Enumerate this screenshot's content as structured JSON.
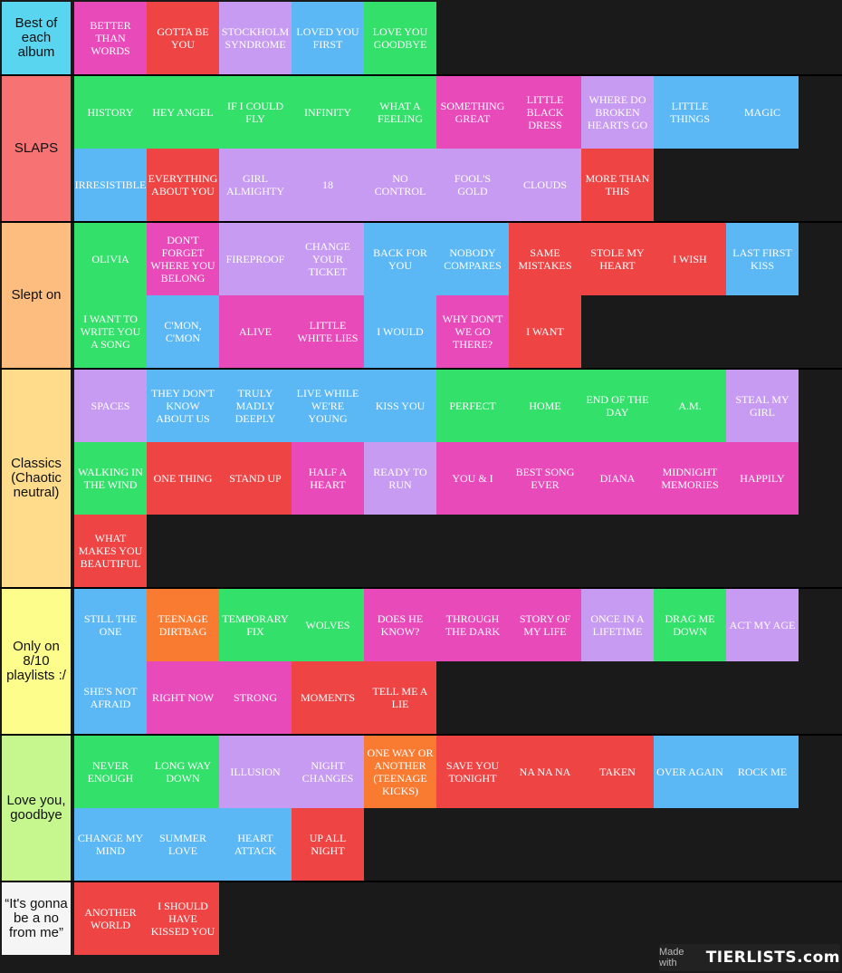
{
  "tiers": [
    {
      "label": "Best of each album",
      "color": "#5ad5f0",
      "items": [
        {
          "text": "BETTER THAN WORDS",
          "color": "pink"
        },
        {
          "text": "GOTTA BE YOU",
          "color": "red"
        },
        {
          "text": "STOCKHOLM SYNDROME",
          "color": "lav"
        },
        {
          "text": "LOVED YOU FIRST",
          "color": "blue"
        },
        {
          "text": "LOVE YOU GOODBYE",
          "color": "green"
        }
      ]
    },
    {
      "label": "SLAPS",
      "color": "#f77272",
      "items": [
        {
          "text": "HISTORY",
          "color": "green"
        },
        {
          "text": "HEY ANGEL",
          "color": "green"
        },
        {
          "text": "IF I COULD FLY",
          "color": "green"
        },
        {
          "text": "INFINITY",
          "color": "green"
        },
        {
          "text": "WHAT A FEELING",
          "color": "green"
        },
        {
          "text": "SOMETHING GREAT",
          "color": "pink"
        },
        {
          "text": "LITTLE BLACK DRESS",
          "color": "pink"
        },
        {
          "text": "WHERE DO BROKEN HEARTS GO",
          "color": "lav"
        },
        {
          "text": "LITTLE THINGS",
          "color": "blue"
        },
        {
          "text": "MAGIC",
          "color": "blue"
        },
        {
          "text": "IRRESISTIBLE",
          "color": "blue"
        },
        {
          "text": "EVERYTHING ABOUT YOU",
          "color": "red"
        },
        {
          "text": "GIRL ALMIGHTY",
          "color": "lav"
        },
        {
          "text": "18",
          "color": "lav"
        },
        {
          "text": "NO CONTROL",
          "color": "lav"
        },
        {
          "text": "FOOL'S GOLD",
          "color": "lav"
        },
        {
          "text": "CLOUDS",
          "color": "lav"
        },
        {
          "text": "MORE THAN THIS",
          "color": "red"
        }
      ]
    },
    {
      "label": "Slept on",
      "color": "#fdbd7e",
      "items": [
        {
          "text": "OLIVIA",
          "color": "green"
        },
        {
          "text": "DON'T FORGET WHERE YOU BELONG",
          "color": "pink"
        },
        {
          "text": "FIREPROOF",
          "color": "lav"
        },
        {
          "text": "CHANGE YOUR TICKET",
          "color": "lav"
        },
        {
          "text": "BACK FOR YOU",
          "color": "blue"
        },
        {
          "text": "NOBODY COMPARES",
          "color": "blue"
        },
        {
          "text": "SAME MISTAKES",
          "color": "red"
        },
        {
          "text": "STOLE MY HEART",
          "color": "red"
        },
        {
          "text": "I WISH",
          "color": "red"
        },
        {
          "text": "LAST FIRST KISS",
          "color": "blue"
        },
        {
          "text": "I WANT TO WRITE YOU A SONG",
          "color": "green"
        },
        {
          "text": "C'MON, C'MON",
          "color": "blue"
        },
        {
          "text": "ALIVE",
          "color": "pink"
        },
        {
          "text": "LITTLE WHITE LIES",
          "color": "pink"
        },
        {
          "text": "I WOULD",
          "color": "blue"
        },
        {
          "text": "WHY DON'T WE GO THERE?",
          "color": "pink"
        },
        {
          "text": "I WANT",
          "color": "red"
        }
      ]
    },
    {
      "label": "Classics (Chaotic neutral)",
      "color": "#fedc8b",
      "items": [
        {
          "text": "SPACES",
          "color": "lav"
        },
        {
          "text": "THEY DON'T KNOW ABOUT US",
          "color": "blue"
        },
        {
          "text": "TRULY MADLY DEEPLY",
          "color": "blue"
        },
        {
          "text": "LIVE WHILE WE'RE YOUNG",
          "color": "blue"
        },
        {
          "text": "KISS YOU",
          "color": "blue"
        },
        {
          "text": "PERFECT",
          "color": "green"
        },
        {
          "text": "HOME",
          "color": "green"
        },
        {
          "text": "END OF THE DAY",
          "color": "green"
        },
        {
          "text": "A.M.",
          "color": "green"
        },
        {
          "text": "STEAL MY GIRL",
          "color": "lav"
        },
        {
          "text": "WALKING IN THE WIND",
          "color": "green"
        },
        {
          "text": "ONE THING",
          "color": "red"
        },
        {
          "text": "STAND UP",
          "color": "red"
        },
        {
          "text": "HALF A HEART",
          "color": "pink"
        },
        {
          "text": "READY TO RUN",
          "color": "lav"
        },
        {
          "text": "YOU & I",
          "color": "pink"
        },
        {
          "text": "BEST SONG EVER",
          "color": "pink"
        },
        {
          "text": "DIANA",
          "color": "pink"
        },
        {
          "text": "MIDNIGHT MEMORIES",
          "color": "pink"
        },
        {
          "text": "HAPPILY",
          "color": "pink"
        },
        {
          "text": "WHAT MAKES YOU BEAUTIFUL",
          "color": "red"
        }
      ]
    },
    {
      "label": "Only on 8/10 playlists :/",
      "color": "#fdfd8b",
      "items": [
        {
          "text": "STILL THE ONE",
          "color": "blue"
        },
        {
          "text": "TEENAGE DIRTBAG",
          "color": "orange"
        },
        {
          "text": "TEMPORARY FIX",
          "color": "green"
        },
        {
          "text": "WOLVES",
          "color": "green"
        },
        {
          "text": "DOES HE KNOW?",
          "color": "pink"
        },
        {
          "text": "THROUGH THE DARK",
          "color": "pink"
        },
        {
          "text": "STORY OF MY LIFE",
          "color": "pink"
        },
        {
          "text": "ONCE IN A LIFETIME",
          "color": "lav"
        },
        {
          "text": "DRAG ME DOWN",
          "color": "green"
        },
        {
          "text": "ACT MY AGE",
          "color": "lav"
        },
        {
          "text": "SHE'S NOT AFRAID",
          "color": "blue"
        },
        {
          "text": "RIGHT NOW",
          "color": "pink"
        },
        {
          "text": "STRONG",
          "color": "pink"
        },
        {
          "text": "MOMENTS",
          "color": "red"
        },
        {
          "text": "TELL ME A LIE",
          "color": "red"
        }
      ]
    },
    {
      "label": "Love you, goodbye",
      "color": "#c6f68e",
      "items": [
        {
          "text": "NEVER ENOUGH",
          "color": "green"
        },
        {
          "text": "LONG WAY DOWN",
          "color": "green"
        },
        {
          "text": "ILLUSION",
          "color": "lav"
        },
        {
          "text": "NIGHT CHANGES",
          "color": "lav"
        },
        {
          "text": "ONE WAY OR ANOTHER (TEENAGE KICKS)",
          "color": "orange"
        },
        {
          "text": "SAVE YOU TONIGHT",
          "color": "red"
        },
        {
          "text": "NA NA NA",
          "color": "red"
        },
        {
          "text": "TAKEN",
          "color": "red"
        },
        {
          "text": "OVER AGAIN",
          "color": "blue"
        },
        {
          "text": "ROCK ME",
          "color": "blue"
        },
        {
          "text": "CHANGE MY MIND",
          "color": "blue"
        },
        {
          "text": "SUMMER LOVE",
          "color": "blue"
        },
        {
          "text": "HEART ATTACK",
          "color": "blue"
        },
        {
          "text": "UP ALL NIGHT",
          "color": "red"
        }
      ]
    },
    {
      "label": "“It's gonna be a no from me”",
      "color": "#f5f5f5",
      "items": [
        {
          "text": "ANOTHER WORLD",
          "color": "red"
        },
        {
          "text": "I SHOULD HAVE KISSED YOU",
          "color": "red"
        }
      ]
    }
  ],
  "watermark": {
    "made_with": "Made with",
    "brand": "TIERLISTS.com"
  }
}
